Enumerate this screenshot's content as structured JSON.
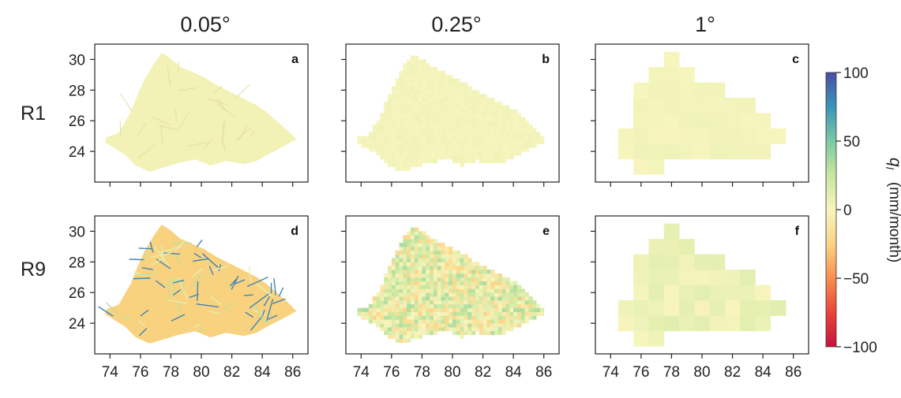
{
  "chart_data": {
    "type": "heatmap",
    "column_titles": [
      "0.05°",
      "0.25°",
      "1°"
    ],
    "row_labels": [
      "R1",
      "R9"
    ],
    "panel_letters": [
      "a",
      "b",
      "c",
      "d",
      "e",
      "f"
    ],
    "x_ticks": [
      "74",
      "76",
      "78",
      "80",
      "82",
      "84",
      "86"
    ],
    "y_ticks": [
      "30",
      "28",
      "26",
      "24"
    ],
    "x_range": [
      73,
      87
    ],
    "y_range": [
      22,
      31
    ],
    "colorbar": {
      "label_symbol": "q",
      "label_subscript": "l",
      "label_units": "(mm/month)",
      "ticks": [
        "100",
        "50",
        "0",
        "−50",
        "−100"
      ],
      "tick_values": [
        100,
        50,
        0,
        -50,
        -100
      ],
      "range": [
        -100,
        100
      ],
      "colors": [
        "#c8123e",
        "#e9453a",
        "#f88e4f",
        "#fcd486",
        "#f7f5bd",
        "#c9e79f",
        "#7cc9a5",
        "#3a93b8",
        "#4a4fa6"
      ]
    },
    "panels": [
      {
        "letter": "a",
        "row": "R1",
        "resolution": "0.05°",
        "dominant_value": 2,
        "fill_color": "#f2f2b6"
      },
      {
        "letter": "b",
        "row": "R1",
        "resolution": "0.25°",
        "dominant_value": 2,
        "fill_color": "#f3f3b8"
      },
      {
        "letter": "c",
        "row": "R1",
        "resolution": "1°",
        "dominant_value": 2,
        "fill_color": "#f4f2b9"
      },
      {
        "letter": "d",
        "row": "R9",
        "resolution": "0.05°",
        "dominant_value": -15,
        "fill_color": "#f9d27f"
      },
      {
        "letter": "e",
        "row": "R9",
        "resolution": "0.25°",
        "dominant_value": 5,
        "fill_color": "#e5eea8"
      },
      {
        "letter": "f",
        "row": "R9",
        "resolution": "1°",
        "dominant_value": 5,
        "fill_color": "#ecefb2"
      }
    ]
  }
}
